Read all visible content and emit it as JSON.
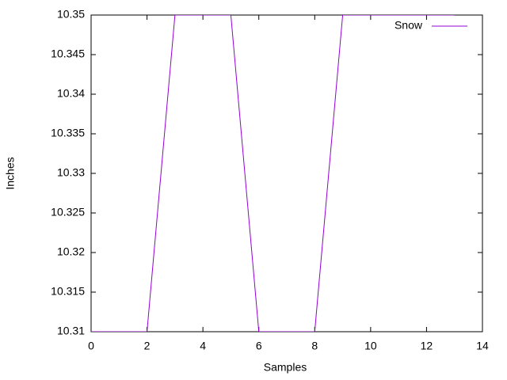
{
  "chart_data": {
    "type": "line",
    "xlabel": "Samples",
    "ylabel": "Inches",
    "x": [
      0,
      1,
      2,
      3,
      4,
      5,
      6,
      7,
      8,
      9,
      10,
      11,
      12,
      13
    ],
    "series": [
      {
        "name": "Snow",
        "color": "#9400d3",
        "values": [
          10.31,
          10.31,
          10.31,
          10.35,
          10.35,
          10.35,
          10.31,
          10.31,
          10.31,
          10.35,
          10.35,
          10.35,
          10.35,
          10.35
        ]
      }
    ],
    "xlim": [
      0,
      14
    ],
    "xticks": [
      0,
      2,
      4,
      6,
      8,
      10,
      12,
      14
    ],
    "ylim": [
      10.31,
      10.35
    ],
    "yticks": [
      10.31,
      10.315,
      10.32,
      10.325,
      10.33,
      10.335,
      10.34,
      10.345,
      10.35
    ],
    "legend": "top-right"
  }
}
